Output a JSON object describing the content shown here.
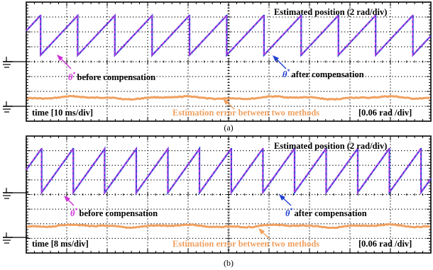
{
  "chart_data": [
    {
      "type": "line",
      "panel_label": "(a)",
      "top_label": "Estimated position (2 rad/div)",
      "time_label": "time [10 ms/div]",
      "error_label": "Estimation error between two methods",
      "error_scale_label": "[0.06 rad /div]",
      "annotation_before": {
        "symbol": "θ",
        "sup": "*",
        "text": "before compensation"
      },
      "annotation_after": {
        "symbol": "θ",
        "sup": "*",
        "text": "after compensation"
      },
      "time_per_div_ms": 10,
      "divisions_x": 10,
      "divisions_y": 8,
      "position_scale_rad_per_div": 2,
      "error_scale_rad_per_div": 0.06,
      "position_range_rad": [
        0,
        6.283
      ],
      "period_ms": 9.2,
      "phase_ms": 3.5,
      "error_mean_rad": 0.0,
      "series": [
        {
          "color": "#1e3fd6"
        },
        {
          "color": "#c03ae0"
        },
        {
          "color": "#f0a060"
        }
      ]
    },
    {
      "type": "line",
      "panel_label": "(b)",
      "top_label": "Estimated position (2 rad/div)",
      "time_label": "time [8 ms/div]",
      "error_label": "Estimation error between two methods",
      "error_scale_label": "[0.06 rad /div]",
      "annotation_before": {
        "symbol": "θ",
        "sup": "*",
        "text": "before compensation"
      },
      "annotation_after": {
        "symbol": "θ",
        "sup": "*",
        "text": "after compensation"
      },
      "time_per_div_ms": 8,
      "divisions_x": 10,
      "divisions_y": 8,
      "position_scale_rad_per_div": 2,
      "error_scale_rad_per_div": 0.06,
      "position_range_rad": [
        0,
        6.283
      ],
      "period_ms": 6.25,
      "phase_ms": 3.0,
      "error_mean_rad": 0.0,
      "series": [
        {
          "color": "#1e3fd6"
        },
        {
          "color": "#c03ae0"
        },
        {
          "color": "#f0a060"
        }
      ]
    }
  ],
  "colors": {
    "annotation_before": "#d030d8",
    "annotation_after": "#2040d0",
    "error_label": "#f0a060"
  }
}
